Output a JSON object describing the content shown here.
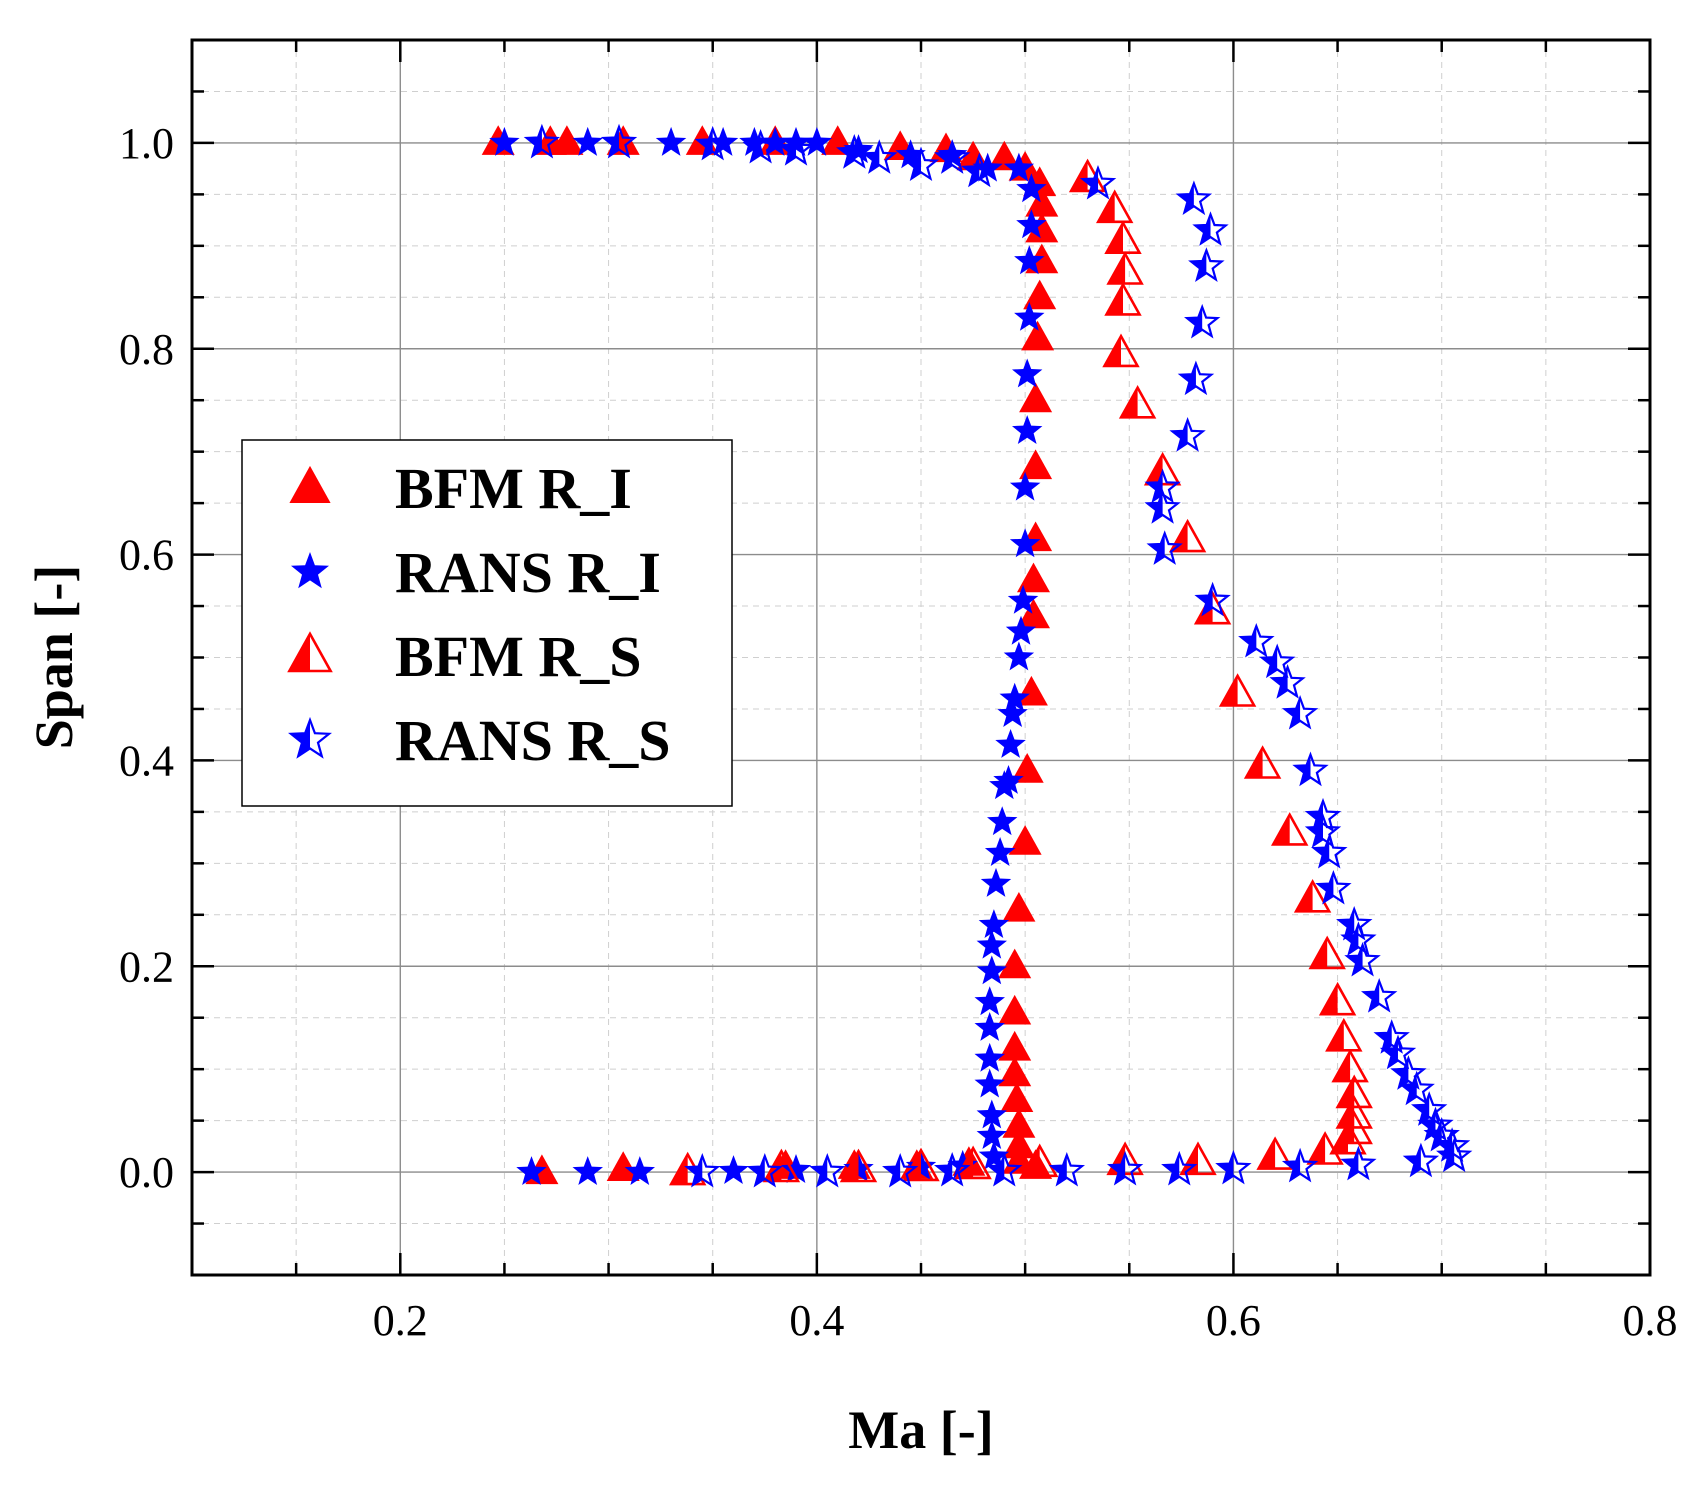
{
  "chart_data": {
    "type": "scatter",
    "title": "",
    "xlabel": "Ma [-]",
    "ylabel": "Span [-]",
    "xlim": [
      0.1,
      0.8
    ],
    "ylim": [
      -0.1,
      1.1
    ],
    "xticks": [
      0.2,
      0.4,
      0.6,
      0.8
    ],
    "xtick_labels": [
      "0.2",
      "0.4",
      "0.6",
      "0.8"
    ],
    "yticks": [
      0.0,
      0.2,
      0.4,
      0.6,
      0.8,
      1.0
    ],
    "ytick_labels": [
      "0.0",
      "0.2",
      "0.4",
      "0.6",
      "0.8",
      "1.0"
    ],
    "grid": true,
    "legend_position": "center-left",
    "colors": {
      "red": "#ff0000",
      "blue": "#0000ff",
      "grid_major": "#8c8c8c",
      "grid_minor": "#cfcfcf"
    },
    "series": [
      {
        "name": "BFM R_I",
        "marker": "triangle-filled",
        "color": "#ff0000",
        "points": [
          [
            0.247,
            1.0
          ],
          [
            0.272,
            1.0
          ],
          [
            0.28,
            1.0
          ],
          [
            0.307,
            1.0
          ],
          [
            0.345,
            1.0
          ],
          [
            0.38,
            1.0
          ],
          [
            0.41,
            1.0
          ],
          [
            0.44,
            0.995
          ],
          [
            0.462,
            0.993
          ],
          [
            0.475,
            0.985
          ],
          [
            0.49,
            0.985
          ],
          [
            0.5,
            0.975
          ],
          [
            0.507,
            0.96
          ],
          [
            0.508,
            0.94
          ],
          [
            0.508,
            0.915
          ],
          [
            0.508,
            0.885
          ],
          [
            0.507,
            0.85
          ],
          [
            0.506,
            0.81
          ],
          [
            0.505,
            0.75
          ],
          [
            0.505,
            0.685
          ],
          [
            0.505,
            0.615
          ],
          [
            0.504,
            0.575
          ],
          [
            0.504,
            0.54
          ],
          [
            0.503,
            0.465
          ],
          [
            0.501,
            0.39
          ],
          [
            0.5,
            0.32
          ],
          [
            0.497,
            0.255
          ],
          [
            0.495,
            0.2
          ],
          [
            0.495,
            0.155
          ],
          [
            0.495,
            0.12
          ],
          [
            0.495,
            0.095
          ],
          [
            0.496,
            0.07
          ],
          [
            0.497,
            0.045
          ],
          [
            0.497,
            0.025
          ],
          [
            0.497,
            0.01
          ],
          [
            0.505,
            0.005
          ],
          [
            0.473,
            0.008
          ],
          [
            0.448,
            0.005
          ],
          [
            0.418,
            0.005
          ],
          [
            0.385,
            0.005
          ],
          [
            0.307,
            0.003
          ],
          [
            0.268,
            0.0
          ]
        ]
      },
      {
        "name": "RANS R_I",
        "marker": "star-filled",
        "color": "#0000ff",
        "points": [
          [
            0.25,
            1.0
          ],
          [
            0.29,
            1.0
          ],
          [
            0.33,
            1.0
          ],
          [
            0.355,
            1.0
          ],
          [
            0.37,
            1.0
          ],
          [
            0.38,
            1.0
          ],
          [
            0.39,
            1.0
          ],
          [
            0.4,
            1.0
          ],
          [
            0.42,
            0.993
          ],
          [
            0.445,
            0.988
          ],
          [
            0.465,
            0.988
          ],
          [
            0.482,
            0.975
          ],
          [
            0.497,
            0.975
          ],
          [
            0.503,
            0.955
          ],
          [
            0.503,
            0.92
          ],
          [
            0.502,
            0.885
          ],
          [
            0.502,
            0.83
          ],
          [
            0.501,
            0.775
          ],
          [
            0.501,
            0.72
          ],
          [
            0.5,
            0.665
          ],
          [
            0.5,
            0.61
          ],
          [
            0.499,
            0.555
          ],
          [
            0.498,
            0.525
          ],
          [
            0.497,
            0.5
          ],
          [
            0.495,
            0.46
          ],
          [
            0.494,
            0.445
          ],
          [
            0.493,
            0.415
          ],
          [
            0.492,
            0.38
          ],
          [
            0.49,
            0.375
          ],
          [
            0.489,
            0.34
          ],
          [
            0.488,
            0.31
          ],
          [
            0.486,
            0.28
          ],
          [
            0.485,
            0.24
          ],
          [
            0.484,
            0.22
          ],
          [
            0.484,
            0.195
          ],
          [
            0.483,
            0.165
          ],
          [
            0.483,
            0.14
          ],
          [
            0.483,
            0.11
          ],
          [
            0.483,
            0.085
          ],
          [
            0.484,
            0.055
          ],
          [
            0.484,
            0.035
          ],
          [
            0.485,
            0.015
          ],
          [
            0.47,
            0.006
          ],
          [
            0.45,
            0.005
          ],
          [
            0.42,
            0.003
          ],
          [
            0.39,
            0.002
          ],
          [
            0.36,
            0.001
          ],
          [
            0.315,
            0.0
          ],
          [
            0.29,
            0.0
          ],
          [
            0.263,
            0.0
          ]
        ]
      },
      {
        "name": "BFM R_S",
        "marker": "triangle-half",
        "color": "#ff0000",
        "points": [
          [
            0.53,
            0.965
          ],
          [
            0.543,
            0.935
          ],
          [
            0.547,
            0.905
          ],
          [
            0.548,
            0.875
          ],
          [
            0.547,
            0.845
          ],
          [
            0.546,
            0.795
          ],
          [
            0.554,
            0.745
          ],
          [
            0.566,
            0.68
          ],
          [
            0.578,
            0.615
          ],
          [
            0.59,
            0.545
          ],
          [
            0.602,
            0.465
          ],
          [
            0.614,
            0.395
          ],
          [
            0.627,
            0.33
          ],
          [
            0.638,
            0.265
          ],
          [
            0.645,
            0.21
          ],
          [
            0.65,
            0.165
          ],
          [
            0.653,
            0.13
          ],
          [
            0.656,
            0.1
          ],
          [
            0.658,
            0.075
          ],
          [
            0.658,
            0.055
          ],
          [
            0.658,
            0.04
          ],
          [
            0.655,
            0.03
          ],
          [
            0.644,
            0.02
          ],
          [
            0.62,
            0.015
          ],
          [
            0.583,
            0.01
          ],
          [
            0.548,
            0.01
          ],
          [
            0.507,
            0.008
          ],
          [
            0.475,
            0.006
          ],
          [
            0.45,
            0.004
          ],
          [
            0.42,
            0.003
          ],
          [
            0.383,
            0.003
          ],
          [
            0.338,
            0.0
          ]
        ]
      },
      {
        "name": "RANS R_S",
        "marker": "star-half",
        "color": "#0000ff",
        "points": [
          [
            0.305,
            1.0
          ],
          [
            0.268,
            1.0
          ],
          [
            0.35,
            0.998
          ],
          [
            0.373,
            0.995
          ],
          [
            0.39,
            0.993
          ],
          [
            0.418,
            0.99
          ],
          [
            0.43,
            0.985
          ],
          [
            0.45,
            0.978
          ],
          [
            0.465,
            0.985
          ],
          [
            0.478,
            0.972
          ],
          [
            0.535,
            0.96
          ],
          [
            0.581,
            0.945
          ],
          [
            0.589,
            0.915
          ],
          [
            0.587,
            0.88
          ],
          [
            0.585,
            0.825
          ],
          [
            0.582,
            0.77
          ],
          [
            0.578,
            0.715
          ],
          [
            0.566,
            0.665
          ],
          [
            0.566,
            0.645
          ],
          [
            0.567,
            0.605
          ],
          [
            0.59,
            0.555
          ],
          [
            0.611,
            0.515
          ],
          [
            0.621,
            0.495
          ],
          [
            0.626,
            0.475
          ],
          [
            0.632,
            0.445
          ],
          [
            0.637,
            0.39
          ],
          [
            0.643,
            0.345
          ],
          [
            0.643,
            0.33
          ],
          [
            0.646,
            0.31
          ],
          [
            0.648,
            0.275
          ],
          [
            0.658,
            0.24
          ],
          [
            0.66,
            0.225
          ],
          [
            0.662,
            0.205
          ],
          [
            0.67,
            0.17
          ],
          [
            0.676,
            0.13
          ],
          [
            0.679,
            0.115
          ],
          [
            0.684,
            0.095
          ],
          [
            0.688,
            0.08
          ],
          [
            0.694,
            0.06
          ],
          [
            0.697,
            0.045
          ],
          [
            0.7,
            0.035
          ],
          [
            0.705,
            0.025
          ],
          [
            0.706,
            0.015
          ],
          [
            0.69,
            0.01
          ],
          [
            0.66,
            0.007
          ],
          [
            0.632,
            0.005
          ],
          [
            0.6,
            0.003
          ],
          [
            0.574,
            0.002
          ],
          [
            0.548,
            0.002
          ],
          [
            0.52,
            0.001
          ],
          [
            0.49,
            0.001
          ],
          [
            0.465,
            0.001
          ],
          [
            0.44,
            0.0
          ],
          [
            0.405,
            0.0
          ],
          [
            0.375,
            0.0
          ],
          [
            0.345,
            0.0
          ]
        ]
      }
    ]
  }
}
